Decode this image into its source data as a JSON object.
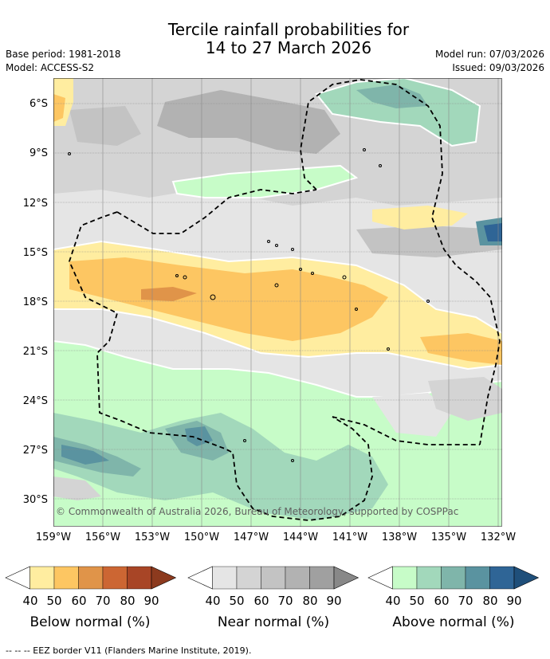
{
  "title_line1": "Tercile rainfall probabilities for",
  "title_line2": "14 to 27 March 2026",
  "base_period": "Base period: 1981-2018",
  "model": "Model: ACCESS-S2",
  "model_run": "Model run: 07/03/2026",
  "issued": "Issued: 09/03/2026",
  "copyright": "© Commonwealth of Australia 2026, Bureau of Meteorology, supported by COSPPac",
  "lat_labels": [
    "6°S",
    "9°S",
    "12°S",
    "15°S",
    "18°S",
    "21°S",
    "24°S",
    "27°S",
    "30°S"
  ],
  "lon_labels": [
    "159°W",
    "156°W",
    "153°W",
    "150°W",
    "147°W",
    "144°W",
    "141°W",
    "138°W",
    "135°W",
    "132°W"
  ],
  "colorbars": {
    "below": {
      "title": "Below normal (%)",
      "ticks": [
        "40",
        "50",
        "60",
        "70",
        "80",
        "90"
      ],
      "colors": [
        "#ffeda0",
        "#fdc662",
        "#e09449",
        "#cc6633",
        "#a84526",
        "#8c3a1e"
      ]
    },
    "near": {
      "title": "Near normal (%)",
      "ticks": [
        "40",
        "50",
        "60",
        "70",
        "80",
        "90"
      ],
      "colors": [
        "#e5e5e5",
        "#d4d4d4",
        "#c3c3c3",
        "#b2b2b2",
        "#a0a0a0",
        "#888888"
      ]
    },
    "above": {
      "title": "Above normal (%)",
      "ticks": [
        "40",
        "50",
        "60",
        "70",
        "80",
        "90"
      ],
      "colors": [
        "#c7fcc8",
        "#a2d8bb",
        "#7fb5aa",
        "#5a93a0",
        "#2f6596",
        "#1f4f7a"
      ]
    }
  },
  "footer": "--  --  -- EEZ border V11 (Flanders Marine Institute, 2019).",
  "colors": {
    "gridline": "#888888",
    "eez_line": "#000000",
    "contour": "#ffffff"
  }
}
